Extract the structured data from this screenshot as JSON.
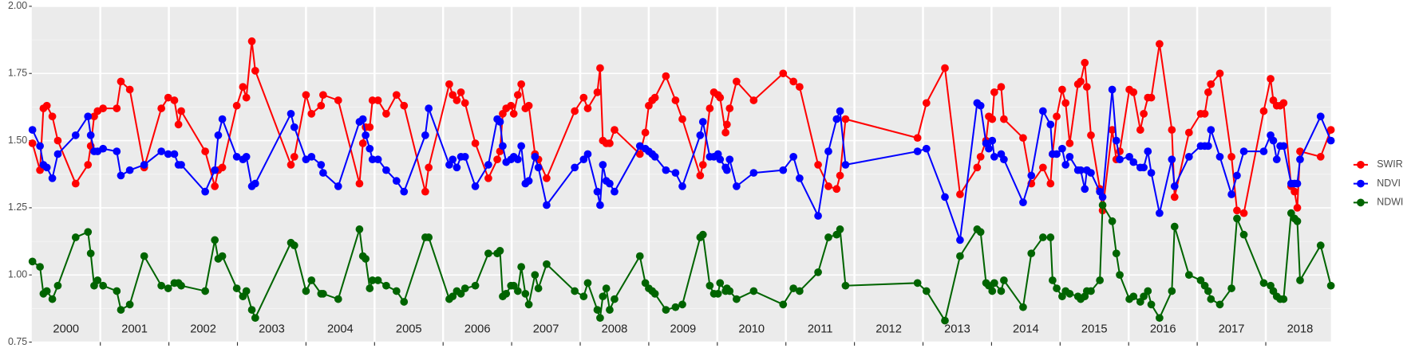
{
  "chart_data": {
    "type": "line",
    "x": [
      2000.01,
      2000.12,
      2000.17,
      2000.22,
      2000.3,
      2000.38,
      2000.64,
      2000.82,
      2000.86,
      2000.91,
      2000.96,
      2001.04,
      2001.24,
      2001.3,
      2001.43,
      2001.64,
      2001.89,
      2001.99,
      2002.08,
      2002.14,
      2002.18,
      2002.53,
      2002.67,
      2002.72,
      2002.78,
      2002.99,
      2003.08,
      2003.13,
      2003.21,
      2003.26,
      2003.78,
      2003.83,
      2004.0,
      2004.08,
      2004.22,
      2004.25,
      2004.47,
      2004.78,
      2004.83,
      2004.87,
      2004.93,
      2004.97,
      2005.05,
      2005.17,
      2005.32,
      2005.43,
      2005.74,
      2005.79,
      2006.09,
      2006.14,
      2006.2,
      2006.26,
      2006.32,
      2006.47,
      2006.66,
      2006.79,
      2006.83,
      2006.87,
      2006.92,
      2006.99,
      2007.03,
      2007.09,
      2007.14,
      2007.2,
      2007.25,
      2007.34,
      2007.39,
      2007.51,
      2007.92,
      2008.05,
      2008.11,
      2008.25,
      2008.29,
      2008.33,
      2008.38,
      2008.43,
      2008.5,
      2008.87,
      2008.95,
      2009.0,
      2009.05,
      2009.09,
      2009.25,
      2009.39,
      2009.49,
      2009.75,
      2009.79,
      2009.89,
      2009.95,
      2010.01,
      2010.04,
      2010.12,
      2010.14,
      2010.18,
      2010.28,
      2010.53,
      2010.96,
      2011.11,
      2011.2,
      2011.47,
      2011.62,
      2011.74,
      2011.79,
      2011.87,
      2012.92,
      2013.05,
      2013.32,
      2013.54,
      2013.79,
      2013.84,
      2013.92,
      2013.96,
      2014.01,
      2014.04,
      2014.14,
      2014.18,
      2014.46,
      2014.58,
      2014.75,
      2014.86,
      2014.89,
      2014.95,
      2015.03,
      2015.08,
      2015.14,
      2015.26,
      2015.3,
      2015.36,
      2015.39,
      2015.45,
      2015.58,
      2015.62,
      2015.76,
      2015.82,
      2015.87,
      2016.01,
      2016.07,
      2016.17,
      2016.22,
      2016.28,
      2016.33,
      2016.45,
      2016.63,
      2016.67,
      2016.88,
      2017.05,
      2017.11,
      2017.16,
      2017.2,
      2017.33,
      2017.5,
      2017.58,
      2017.68,
      2017.97,
      2018.07,
      2018.11,
      2018.16,
      2018.21,
      2018.26,
      2018.37,
      2018.42,
      2018.46,
      2018.5,
      2018.8,
      2018.95
    ],
    "series": [
      {
        "name": "SWIR",
        "color": "#ff0000",
        "values": [
          1.49,
          1.39,
          1.62,
          1.63,
          1.59,
          1.5,
          1.34,
          1.41,
          1.48,
          1.59,
          1.61,
          1.62,
          1.62,
          1.72,
          1.69,
          1.4,
          1.62,
          1.66,
          1.65,
          1.56,
          1.61,
          1.46,
          1.33,
          1.39,
          1.4,
          1.63,
          1.7,
          1.66,
          1.87,
          1.76,
          1.41,
          1.44,
          1.67,
          1.6,
          1.63,
          1.67,
          1.65,
          1.34,
          1.49,
          1.55,
          1.55,
          1.65,
          1.65,
          1.6,
          1.67,
          1.63,
          1.31,
          1.4,
          1.71,
          1.67,
          1.65,
          1.68,
          1.64,
          1.49,
          1.36,
          1.43,
          1.46,
          1.6,
          1.62,
          1.63,
          1.6,
          1.67,
          1.71,
          1.62,
          1.63,
          1.45,
          1.43,
          1.36,
          1.61,
          1.66,
          1.62,
          1.68,
          1.77,
          1.5,
          1.49,
          1.49,
          1.54,
          1.45,
          1.53,
          1.63,
          1.65,
          1.66,
          1.74,
          1.65,
          1.58,
          1.37,
          1.41,
          1.62,
          1.68,
          1.67,
          1.66,
          1.53,
          1.56,
          1.62,
          1.72,
          1.65,
          1.75,
          1.72,
          1.7,
          1.41,
          1.33,
          1.32,
          1.37,
          1.58,
          1.51,
          1.64,
          1.77,
          1.3,
          1.4,
          1.44,
          1.5,
          1.59,
          1.58,
          1.68,
          1.7,
          1.58,
          1.51,
          1.34,
          1.4,
          1.34,
          1.45,
          1.59,
          1.69,
          1.64,
          1.49,
          1.71,
          1.72,
          1.79,
          1.7,
          1.52,
          1.32,
          1.24,
          1.54,
          1.43,
          1.46,
          1.69,
          1.68,
          1.54,
          1.6,
          1.66,
          1.66,
          1.86,
          1.54,
          1.29,
          1.53,
          1.6,
          1.6,
          1.68,
          1.71,
          1.75,
          1.44,
          1.24,
          1.23,
          1.61,
          1.73,
          1.65,
          1.63,
          1.63,
          1.64,
          1.33,
          1.31,
          1.25,
          1.46,
          1.44,
          1.54
        ]
      },
      {
        "name": "NDVI",
        "color": "#0000ff",
        "values": [
          1.54,
          1.48,
          1.41,
          1.4,
          1.36,
          1.45,
          1.52,
          1.59,
          1.52,
          1.46,
          1.46,
          1.47,
          1.46,
          1.37,
          1.39,
          1.41,
          1.46,
          1.45,
          1.45,
          1.41,
          1.41,
          1.31,
          1.39,
          1.52,
          1.58,
          1.44,
          1.43,
          1.44,
          1.33,
          1.34,
          1.6,
          1.55,
          1.43,
          1.44,
          1.41,
          1.38,
          1.33,
          1.57,
          1.58,
          1.52,
          1.47,
          1.43,
          1.43,
          1.39,
          1.35,
          1.31,
          1.52,
          1.62,
          1.41,
          1.43,
          1.4,
          1.44,
          1.44,
          1.33,
          1.41,
          1.58,
          1.57,
          1.48,
          1.42,
          1.43,
          1.44,
          1.43,
          1.48,
          1.34,
          1.35,
          1.44,
          1.4,
          1.26,
          1.4,
          1.43,
          1.45,
          1.31,
          1.26,
          1.41,
          1.35,
          1.34,
          1.31,
          1.48,
          1.47,
          1.46,
          1.45,
          1.44,
          1.39,
          1.38,
          1.33,
          1.52,
          1.57,
          1.44,
          1.44,
          1.45,
          1.43,
          1.4,
          1.39,
          1.43,
          1.33,
          1.38,
          1.39,
          1.44,
          1.36,
          1.22,
          1.46,
          1.58,
          1.61,
          1.41,
          1.46,
          1.47,
          1.29,
          1.13,
          1.64,
          1.63,
          1.49,
          1.47,
          1.5,
          1.44,
          1.45,
          1.43,
          1.27,
          1.37,
          1.61,
          1.56,
          1.45,
          1.45,
          1.47,
          1.41,
          1.44,
          1.39,
          1.39,
          1.32,
          1.39,
          1.38,
          1.31,
          1.29,
          1.69,
          1.5,
          1.43,
          1.44,
          1.42,
          1.4,
          1.4,
          1.46,
          1.38,
          1.23,
          1.43,
          1.33,
          1.44,
          1.48,
          1.48,
          1.48,
          1.54,
          1.44,
          1.3,
          1.37,
          1.46,
          1.46,
          1.52,
          1.5,
          1.43,
          1.48,
          1.48,
          1.34,
          1.34,
          1.34,
          1.43,
          1.59,
          1.5
        ]
      },
      {
        "name": "NDWI",
        "color": "#006400",
        "values": [
          1.05,
          1.03,
          0.93,
          0.94,
          0.91,
          0.96,
          1.14,
          1.16,
          1.08,
          0.96,
          0.98,
          0.96,
          0.94,
          0.87,
          0.89,
          1.07,
          0.96,
          0.95,
          0.97,
          0.97,
          0.96,
          0.94,
          1.13,
          1.06,
          1.07,
          0.95,
          0.92,
          0.94,
          0.87,
          0.84,
          1.12,
          1.11,
          0.94,
          0.98,
          0.93,
          0.93,
          0.91,
          1.17,
          1.07,
          1.06,
          0.95,
          0.98,
          0.98,
          0.96,
          0.94,
          0.9,
          1.14,
          1.14,
          0.91,
          0.92,
          0.94,
          0.93,
          0.95,
          0.96,
          1.08,
          1.08,
          1.09,
          0.92,
          0.93,
          0.96,
          0.96,
          0.94,
          1.03,
          0.93,
          0.89,
          1.0,
          0.95,
          1.04,
          0.94,
          0.92,
          0.97,
          0.87,
          0.84,
          0.92,
          0.95,
          0.87,
          0.91,
          1.07,
          0.97,
          0.95,
          0.94,
          0.93,
          0.87,
          0.88,
          0.89,
          1.14,
          1.15,
          0.96,
          0.93,
          0.93,
          0.97,
          0.94,
          0.95,
          0.94,
          0.91,
          0.94,
          0.89,
          0.95,
          0.94,
          1.01,
          1.14,
          1.15,
          1.17,
          0.96,
          0.97,
          0.94,
          0.83,
          1.07,
          1.17,
          1.16,
          0.97,
          0.96,
          0.94,
          0.97,
          0.94,
          0.98,
          0.88,
          1.08,
          1.14,
          1.14,
          0.98,
          0.95,
          0.92,
          0.94,
          0.93,
          0.92,
          0.91,
          0.92,
          0.94,
          0.94,
          0.98,
          1.26,
          1.2,
          1.08,
          1.0,
          0.91,
          0.92,
          0.9,
          0.92,
          0.94,
          0.89,
          0.84,
          0.94,
          1.18,
          1.0,
          0.98,
          0.96,
          0.94,
          0.91,
          0.89,
          0.95,
          1.21,
          1.15,
          0.97,
          0.96,
          0.94,
          0.92,
          0.91,
          0.91,
          1.23,
          1.21,
          1.2,
          0.98,
          1.11,
          0.96
        ]
      }
    ],
    "xlim": [
      2000,
      2018.95
    ],
    "xticks": [
      {
        "value": 2000.5,
        "label": "2000"
      },
      {
        "value": 2001.5,
        "label": "2001"
      },
      {
        "value": 2002.5,
        "label": "2002"
      },
      {
        "value": 2003.5,
        "label": "2003"
      },
      {
        "value": 2004.5,
        "label": "2004"
      },
      {
        "value": 2005.5,
        "label": "2005"
      },
      {
        "value": 2006.5,
        "label": "2006"
      },
      {
        "value": 2007.5,
        "label": "2007"
      },
      {
        "value": 2008.5,
        "label": "2008"
      },
      {
        "value": 2009.5,
        "label": "2009"
      },
      {
        "value": 2010.5,
        "label": "2010"
      },
      {
        "value": 2011.5,
        "label": "2011"
      },
      {
        "value": 2012.5,
        "label": "2012"
      },
      {
        "value": 2013.5,
        "label": "2013"
      },
      {
        "value": 2014.5,
        "label": "2014"
      },
      {
        "value": 2015.5,
        "label": "2015"
      },
      {
        "value": 2016.5,
        "label": "2016"
      },
      {
        "value": 2017.5,
        "label": "2017"
      },
      {
        "value": 2018.5,
        "label": "2018"
      }
    ],
    "xgrid": [
      2001,
      2002,
      2003,
      2004,
      2005,
      2006,
      2007,
      2008,
      2009,
      2010,
      2011,
      2012,
      2013,
      2014,
      2015,
      2016,
      2017,
      2018
    ],
    "ylim": [
      0.75,
      2.0
    ],
    "yticks": [
      {
        "value": 0.75,
        "label": "0.75"
      },
      {
        "value": 1.0,
        "label": "1.00"
      },
      {
        "value": 1.25,
        "label": "1.25"
      },
      {
        "value": 1.5,
        "label": "1.50"
      },
      {
        "value": 1.75,
        "label": "1.75"
      },
      {
        "value": 2.0,
        "label": "2.00"
      }
    ],
    "yminor": [
      0.875,
      1.125,
      1.375,
      1.625,
      1.875
    ],
    "grid": true,
    "legend": "right"
  }
}
